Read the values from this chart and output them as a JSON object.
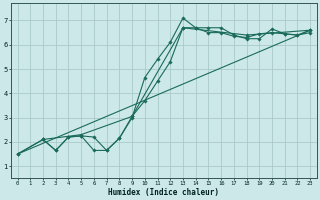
{
  "xlabel": "Humidex (Indice chaleur)",
  "bg_color": "#cce8e8",
  "grid_color": "#aacaca",
  "line_color": "#1a6b5a",
  "xlim": [
    -0.5,
    23.5
  ],
  "ylim": [
    0.5,
    7.7
  ],
  "xticks": [
    0,
    1,
    2,
    3,
    4,
    5,
    6,
    7,
    8,
    9,
    10,
    11,
    12,
    13,
    14,
    15,
    16,
    17,
    18,
    19,
    20,
    21,
    22,
    23
  ],
  "yticks": [
    1,
    2,
    3,
    4,
    5,
    6,
    7
  ],
  "line1_x": [
    0,
    2,
    3,
    4,
    5,
    6,
    7,
    8,
    9,
    10,
    11,
    12,
    13,
    14,
    15,
    16,
    17,
    18,
    19,
    20,
    21,
    22,
    23
  ],
  "line1_y": [
    1.5,
    2.1,
    1.65,
    2.2,
    2.25,
    1.65,
    1.65,
    2.15,
    3.0,
    4.65,
    5.4,
    6.1,
    7.1,
    6.7,
    6.7,
    6.7,
    6.4,
    6.25,
    6.25,
    6.65,
    6.45,
    6.4,
    6.5
  ],
  "line2_x": [
    2,
    3,
    4,
    5,
    6,
    7,
    8,
    9,
    10,
    11,
    12,
    13,
    14,
    15,
    16,
    17,
    18,
    19,
    20,
    21,
    22,
    23
  ],
  "line2_y": [
    2.1,
    1.65,
    2.2,
    2.25,
    2.2,
    1.65,
    2.15,
    3.05,
    3.7,
    4.5,
    5.3,
    6.7,
    6.7,
    6.5,
    6.5,
    6.35,
    6.3,
    6.45,
    6.5,
    6.45,
    6.4,
    6.6
  ],
  "line3_x": [
    0,
    2,
    5,
    9,
    13,
    18,
    23
  ],
  "line3_y": [
    1.5,
    2.1,
    2.3,
    3.05,
    6.7,
    6.4,
    6.6
  ],
  "line4_x": [
    0,
    23
  ],
  "line4_y": [
    1.5,
    6.6
  ]
}
